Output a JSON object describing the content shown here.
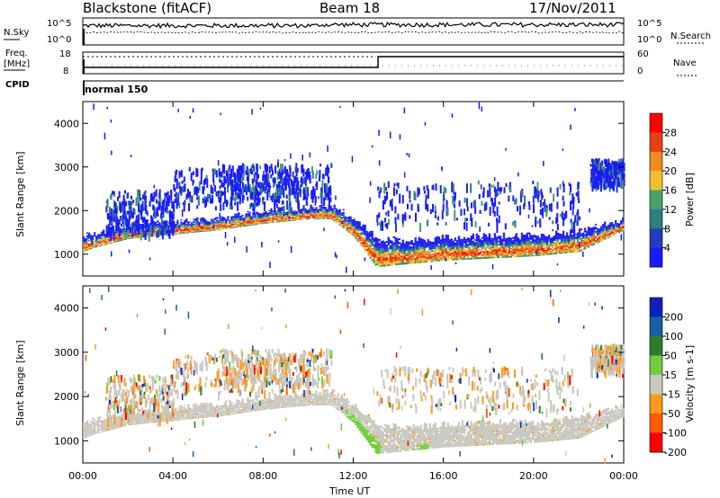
{
  "header": {
    "station": "Blackstone (fitACF)",
    "beam": "Beam 18",
    "date": "17/Nov/2011"
  },
  "top_panels": {
    "nsky_label": "N.Sky",
    "nsky_ticks": [
      "10^5",
      "10^0"
    ],
    "nsearch_label": "N.Search",
    "nsearch_ticks": [
      "10^5",
      "10^0"
    ],
    "freq_label": "Freq.",
    "freq_unit": "[MHz]",
    "freq_ticks": [
      "18",
      "8"
    ],
    "nave_label": "Nave",
    "nave_ticks": [
      "60",
      "0"
    ],
    "cpid_label": "CPID",
    "cpid_value": "normal 150"
  },
  "colors": {
    "power_scale": [
      "#1a1aff",
      "#1f3fbf",
      "#2f7f7f",
      "#4aa06a",
      "#f0c030",
      "#f08a20",
      "#e84010",
      "#ff0000"
    ],
    "velocity_scale": [
      "#ff0000",
      "#ff5a00",
      "#ff9a1a",
      "#c8c8c0",
      "#6ecf3a",
      "#2e7d2e",
      "#1a5fa0",
      "#1020c0"
    ],
    "ground_scatter": "#c8c8c0"
  },
  "chart_data": [
    {
      "type": "heatmap",
      "name": "power",
      "ylabel": "Slant Range [km]",
      "xlabel": "",
      "x_ticks": [
        "00:00",
        "04:00",
        "08:00",
        "12:00",
        "16:00",
        "20:00",
        "00:00"
      ],
      "y_ticks": [
        "1000",
        "2000",
        "3000",
        "4000"
      ],
      "ylim": [
        500,
        4500
      ],
      "xlim_hours": [
        0,
        24
      ],
      "colorbar_label": "Power [dB]",
      "colorbar_ticks": [
        "4",
        "8",
        "12",
        "16",
        "20",
        "24",
        "28"
      ],
      "bands": [
        {
          "t": [
            0,
            0.5,
            2,
            4,
            6,
            8,
            10,
            11,
            12,
            13,
            14,
            15,
            16,
            18,
            20,
            22,
            23,
            24
          ],
          "low": [
            1050,
            1150,
            1350,
            1450,
            1550,
            1700,
            1800,
            1800,
            1400,
            700,
            750,
            800,
            850,
            900,
            950,
            1050,
            1300,
            1550
          ],
          "high": [
            1350,
            1400,
            1600,
            1650,
            1750,
            1900,
            2000,
            2050,
            1750,
            1300,
            1250,
            1250,
            1300,
            1350,
            1350,
            1450,
            1600,
            1700
          ]
        }
      ]
    },
    {
      "type": "heatmap",
      "name": "velocity",
      "ylabel": "Slant Range [km]",
      "xlabel": "Time UT",
      "x_ticks": [
        "00:00",
        "04:00",
        "08:00",
        "12:00",
        "16:00",
        "20:00",
        "00:00"
      ],
      "y_ticks": [
        "1000",
        "2000",
        "3000",
        "4000"
      ],
      "ylim": [
        500,
        4500
      ],
      "xlim_hours": [
        0,
        24
      ],
      "colorbar_label": "Velocity [m s-1]",
      "colorbar_ticks": [
        "200",
        "100",
        "50",
        "15",
        "-15",
        "-50",
        "-100",
        "-200"
      ]
    }
  ]
}
